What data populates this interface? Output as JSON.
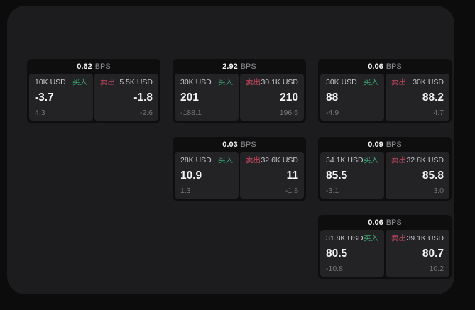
{
  "labels": {
    "bps_unit": "BPS",
    "buy": "买入",
    "sell": "卖出"
  },
  "colors": {
    "page_bg": "#0c0c0c",
    "window_bg": "#1c1c1e",
    "card_bg": "#0e0e0f",
    "panel_bg": "#232326",
    "value_text": "#f4f4f5",
    "label_text": "#c9c9cd",
    "muted_text": "#77777b",
    "bps_unit_text": "#8e8e93",
    "buy_color": "#3ba571",
    "sell_color": "#c2485e"
  },
  "cards": [
    {
      "row": 1,
      "col": 1,
      "bps": "0.62",
      "buy": {
        "amount": "10K USD",
        "value": "-3.7",
        "sub": "4.3"
      },
      "sell": {
        "amount": "5.5K USD",
        "value": "-1.8",
        "sub": "-2.6"
      }
    },
    {
      "row": 1,
      "col": 2,
      "bps": "2.92",
      "buy": {
        "amount": "30K USD",
        "value": "201",
        "sub": "-188.1"
      },
      "sell": {
        "amount": "30.1K USD",
        "value": "210",
        "sub": "196.5"
      }
    },
    {
      "row": 1,
      "col": 3,
      "bps": "0.06",
      "buy": {
        "amount": "30K USD",
        "value": "88",
        "sub": "-4.9"
      },
      "sell": {
        "amount": "30K USD",
        "value": "88.2",
        "sub": "4.7"
      }
    },
    {
      "row": 2,
      "col": 2,
      "bps": "0.03",
      "buy": {
        "amount": "28K USD",
        "value": "10.9",
        "sub": "1.3"
      },
      "sell": {
        "amount": "32.6K USD",
        "value": "11",
        "sub": "-1.8"
      }
    },
    {
      "row": 2,
      "col": 3,
      "bps": "0.09",
      "buy": {
        "amount": "34.1K USD",
        "value": "85.5",
        "sub": "-3.1"
      },
      "sell": {
        "amount": "32.8K USD",
        "value": "85.8",
        "sub": "3.0"
      }
    },
    {
      "row": 3,
      "col": 3,
      "bps": "0.06",
      "buy": {
        "amount": "31.8K USD",
        "value": "80.5",
        "sub": "-10.8"
      },
      "sell": {
        "amount": "39.1K USD",
        "value": "80.7",
        "sub": "10.2"
      }
    }
  ]
}
